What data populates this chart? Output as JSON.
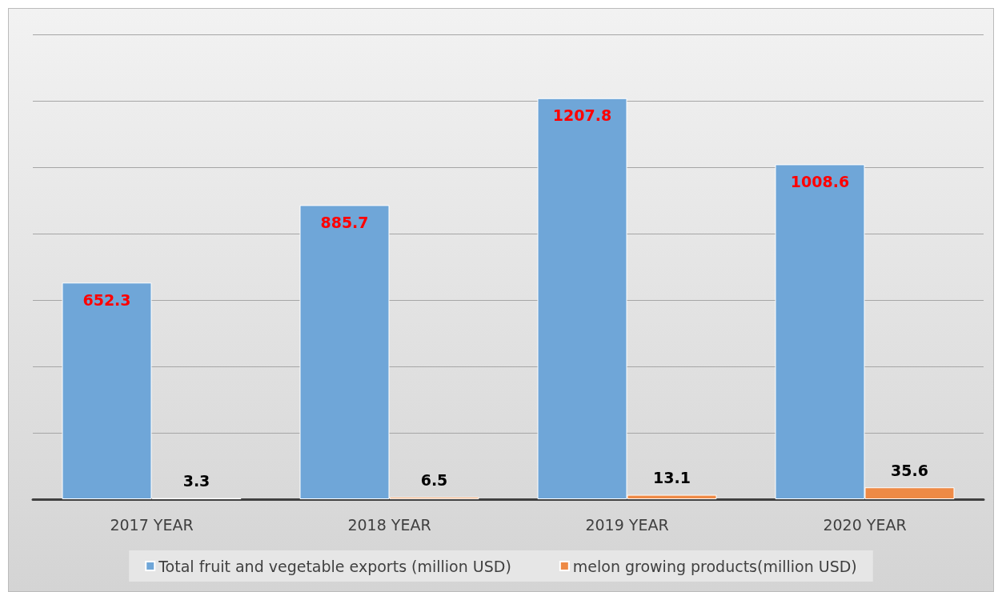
{
  "chart_data": {
    "type": "bar",
    "categories": [
      "2017 YEAR",
      "2018 YEAR",
      "2019 YEAR",
      "2020 YEAR"
    ],
    "series": [
      {
        "name": "Total fruit and vegetable exports (million USD)",
        "color": "#6fa6d8",
        "values": [
          652.3,
          885.7,
          1207.8,
          1008.6
        ]
      },
      {
        "name": "melon growing products(million USD)",
        "color": "#ee8a46",
        "values": [
          3.3,
          6.5,
          13.1,
          35.6
        ]
      }
    ],
    "ylim": [
      0,
      1400
    ],
    "yticks": [
      {
        "value": 0,
        "label": null
      },
      {
        "value": 200,
        "label": null
      },
      {
        "value": 400,
        "label": null
      },
      {
        "value": 600,
        "label": null
      },
      {
        "value": 800,
        "label": null
      },
      {
        "value": 1000,
        "label": null
      },
      {
        "value": 1200,
        "label": null
      },
      {
        "value": 1400,
        "label": null
      }
    ],
    "grid": "y",
    "legend": "bottom",
    "data_labels": true
  }
}
